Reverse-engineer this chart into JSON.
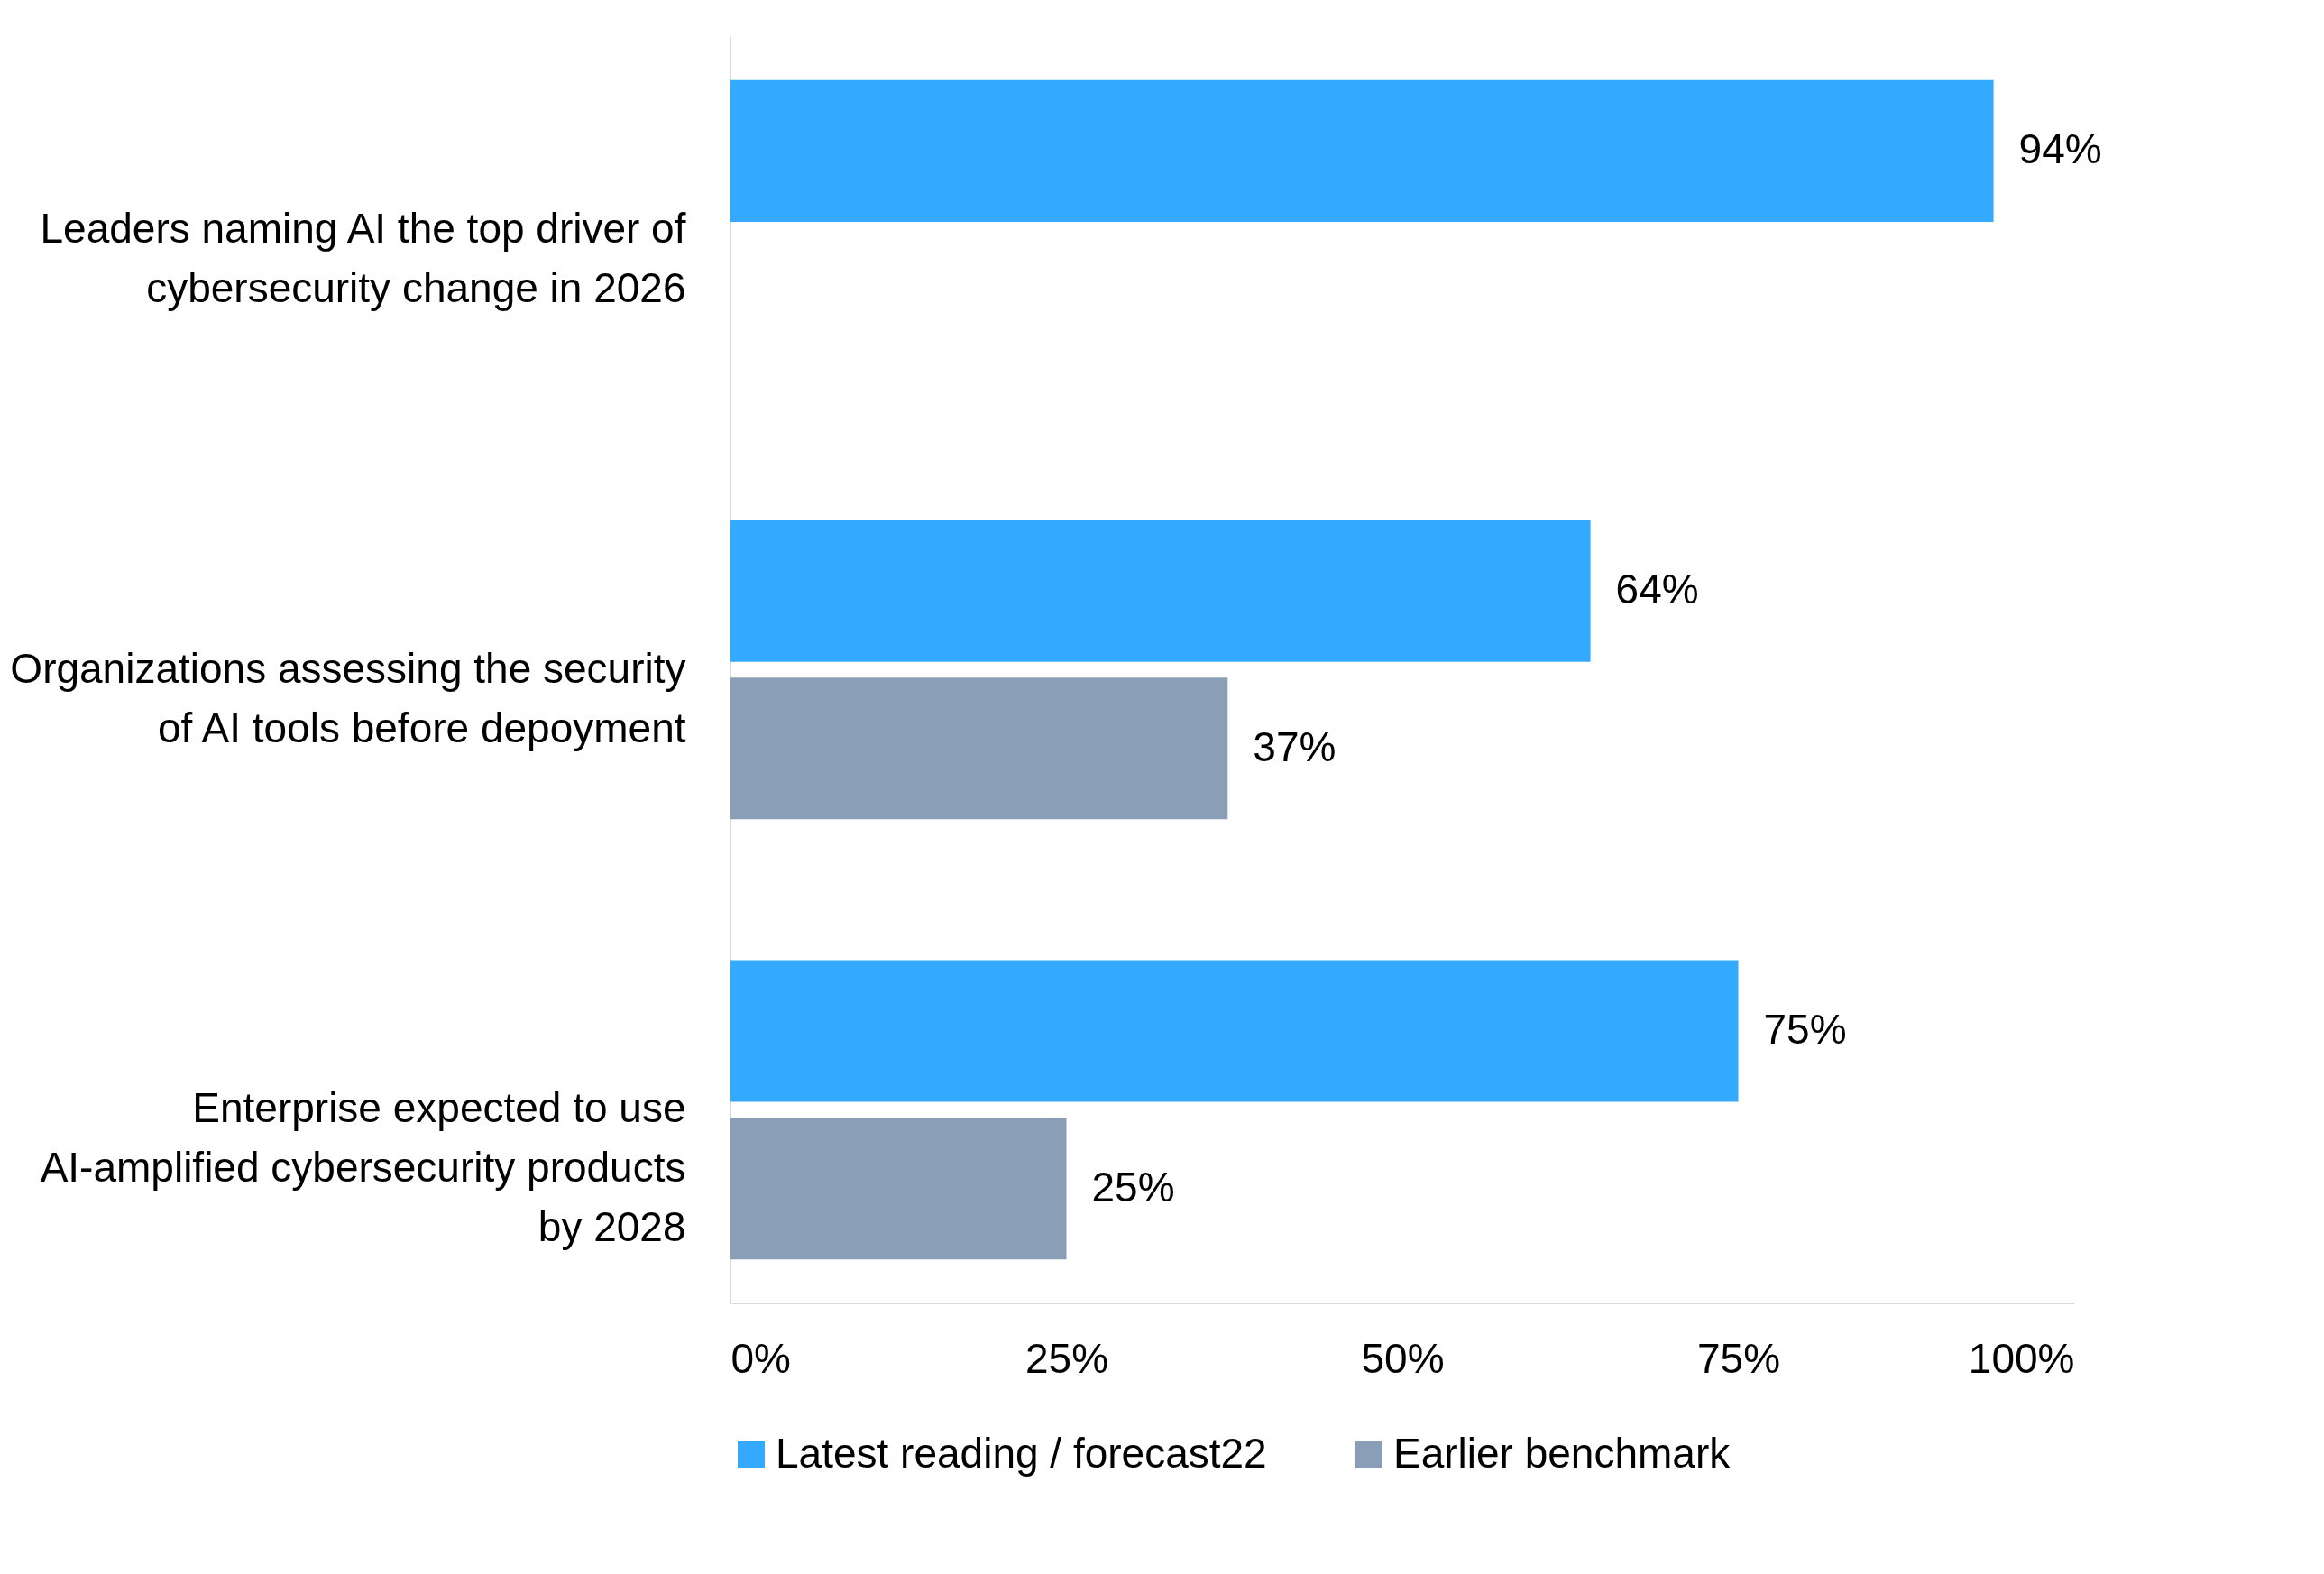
{
  "chart_data": {
    "type": "bar",
    "orientation": "horizontal",
    "categories": [
      "Leaders naming AI the top driver of cybersecurity change in 2026",
      "Organizations assessing the security of AI tools before depoyment",
      "Enterprise expected to use AI-amplified cybersecurity products by 2028"
    ],
    "series": [
      {
        "name": "Latest reading / forecast22",
        "color": "#33aaff",
        "values": [
          94,
          64,
          75
        ],
        "value_labels": [
          "94%",
          "64%",
          "75%"
        ]
      },
      {
        "name": "Earlier benchmark",
        "color": "#8a9fb7",
        "values": [
          null,
          37,
          25
        ],
        "value_labels": [
          null,
          "37%",
          "25%"
        ]
      }
    ],
    "xlim": [
      0,
      100
    ],
    "xticks": [
      {
        "value": 0,
        "label": "0%"
      },
      {
        "value": 25,
        "label": "25%"
      },
      {
        "value": 50,
        "label": "50%"
      },
      {
        "value": 75,
        "label": "75%"
      },
      {
        "value": 100,
        "label": "100%"
      }
    ],
    "grid": false,
    "legend": "bottom"
  }
}
